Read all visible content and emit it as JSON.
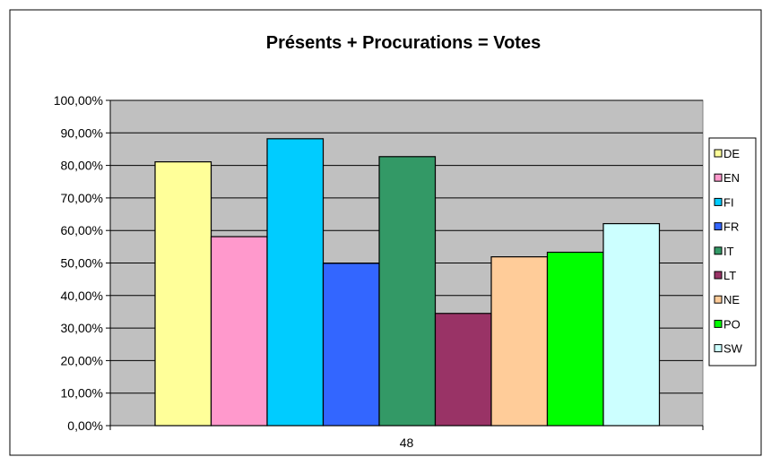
{
  "chart_data": {
    "type": "bar",
    "title": "Présents + Procurations = Votes",
    "categories": [
      "48"
    ],
    "xlabel": "",
    "ylabel": "",
    "ylim": [
      0,
      100
    ],
    "yticks": [
      "0,00%",
      "10,00%",
      "20,00%",
      "30,00%",
      "40,00%",
      "50,00%",
      "60,00%",
      "70,00%",
      "80,00%",
      "90,00%",
      "100,00%"
    ],
    "grid": true,
    "legend_position": "right",
    "plot_background": "#c0c0c0",
    "series": [
      {
        "name": "DE",
        "values": [
          81.1
        ],
        "color": "#ffff99"
      },
      {
        "name": "EN",
        "values": [
          58.1
        ],
        "color": "#ff99cc"
      },
      {
        "name": "FI",
        "values": [
          88.2
        ],
        "color": "#00ccff"
      },
      {
        "name": "FR",
        "values": [
          49.9
        ],
        "color": "#3366ff"
      },
      {
        "name": "IT",
        "values": [
          82.7
        ],
        "color": "#339966"
      },
      {
        "name": "LT",
        "values": [
          34.5
        ],
        "color": "#993366"
      },
      {
        "name": "NE",
        "values": [
          51.9
        ],
        "color": "#ffcc99"
      },
      {
        "name": "PO",
        "values": [
          53.3
        ],
        "color": "#00ff00"
      },
      {
        "name": "SW",
        "values": [
          62.1
        ],
        "color": "#ccffff"
      }
    ]
  }
}
